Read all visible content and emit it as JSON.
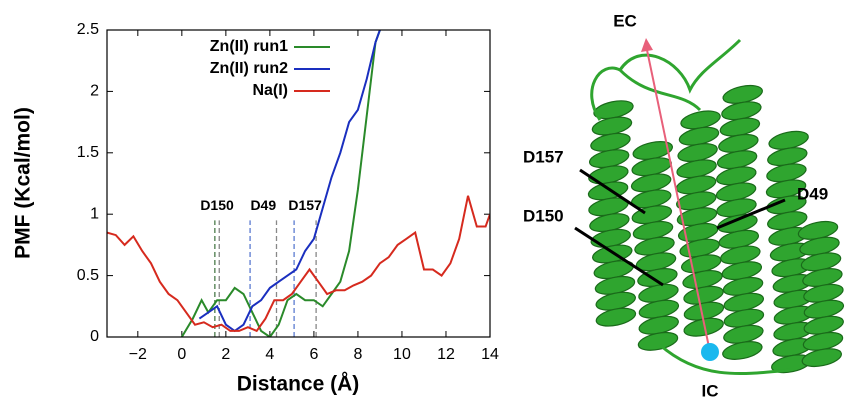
{
  "chart_data": {
    "type": "line",
    "xlabel": "Distance (Å)",
    "ylabel": "PMF (Kcal/mol)",
    "xlim": [
      -3.4,
      14
    ],
    "ylim": [
      0,
      2.5
    ],
    "xticks": [
      {
        "value": -2,
        "label": "−2"
      },
      0,
      2,
      4,
      6,
      8,
      10,
      12,
      14
    ],
    "yticks": [
      0,
      0.5,
      1,
      1.5,
      2,
      2.5
    ],
    "legend": "top",
    "series": [
      {
        "name": "Zn(II) run1",
        "color": "#2a8a2a",
        "x": [
          0,
          0.5,
          0.9,
          1.2,
          1.6,
          2,
          2.4,
          2.8,
          3.2,
          3.6,
          4,
          4.4,
          4.8,
          5.2,
          5.6,
          6,
          6.4,
          6.8,
          7.2,
          7.6,
          8,
          8.4,
          8.8,
          9
        ],
        "values": [
          0,
          0.15,
          0.3,
          0.2,
          0.3,
          0.3,
          0.4,
          0.35,
          0.2,
          0.05,
          0,
          0.1,
          0.3,
          0.35,
          0.3,
          0.3,
          0.25,
          0.35,
          0.45,
          0.7,
          1.2,
          1.8,
          2.4,
          2.5
        ]
      },
      {
        "name": "Zn(II) run2",
        "color": "#1a2fbf",
        "x": [
          0.8,
          1.2,
          1.6,
          2,
          2.4,
          2.8,
          3.2,
          3.6,
          4,
          4.4,
          4.8,
          5.2,
          5.6,
          6,
          6.4,
          6.8,
          7.2,
          7.6,
          8,
          8.4,
          8.8,
          9
        ],
        "values": [
          0.15,
          0.2,
          0.25,
          0.1,
          0.05,
          0.1,
          0.25,
          0.3,
          0.4,
          0.45,
          0.5,
          0.55,
          0.7,
          0.8,
          1.05,
          1.3,
          1.5,
          1.75,
          1.85,
          2.1,
          2.4,
          2.5
        ]
      },
      {
        "name": "Na(I)",
        "color": "#d62a1e",
        "x": [
          -3.4,
          -3,
          -2.6,
          -2.2,
          -1.8,
          -1.4,
          -1,
          -0.6,
          -0.2,
          0.2,
          0.6,
          1,
          1.4,
          1.8,
          2.2,
          2.6,
          3,
          3.4,
          3.8,
          4.2,
          4.6,
          5,
          5.4,
          5.8,
          6.2,
          6.6,
          7,
          7.4,
          7.8,
          8.2,
          8.6,
          9,
          9.4,
          9.8,
          10.2,
          10.6,
          11,
          11.4,
          11.8,
          12.2,
          12.6,
          13,
          13.4,
          13.8,
          14
        ],
        "values": [
          0.85,
          0.83,
          0.75,
          0.82,
          0.7,
          0.6,
          0.45,
          0.35,
          0.3,
          0.2,
          0.1,
          0.12,
          0.08,
          0.1,
          0.05,
          0.05,
          0.08,
          0.05,
          0.15,
          0.3,
          0.3,
          0.35,
          0.45,
          0.55,
          0.45,
          0.35,
          0.38,
          0.38,
          0.42,
          0.45,
          0.5,
          0.6,
          0.65,
          0.75,
          0.8,
          0.85,
          0.55,
          0.55,
          0.5,
          0.6,
          0.8,
          1.15,
          0.9,
          0.9,
          1.0
        ]
      }
    ],
    "annotations": [
      {
        "text": "D150",
        "lines": [
          {
            "x": 1.5,
            "color": "#4a7a4a"
          },
          {
            "x": 1.7,
            "color": "#888888"
          }
        ]
      },
      {
        "text": "D49",
        "lines": [
          {
            "x": 3.1,
            "color": "#5a7ad0"
          },
          {
            "x": 4.3,
            "color": "#888888"
          }
        ]
      },
      {
        "text": "D157",
        "lines": [
          {
            "x": 5.1,
            "color": "#5a7ad0"
          },
          {
            "x": 6.1,
            "color": "#888888"
          }
        ]
      }
    ],
    "annotation_top": 0.95
  },
  "structure": {
    "labels": [
      "EC",
      "IC",
      "D157",
      "D150",
      "D49"
    ]
  }
}
